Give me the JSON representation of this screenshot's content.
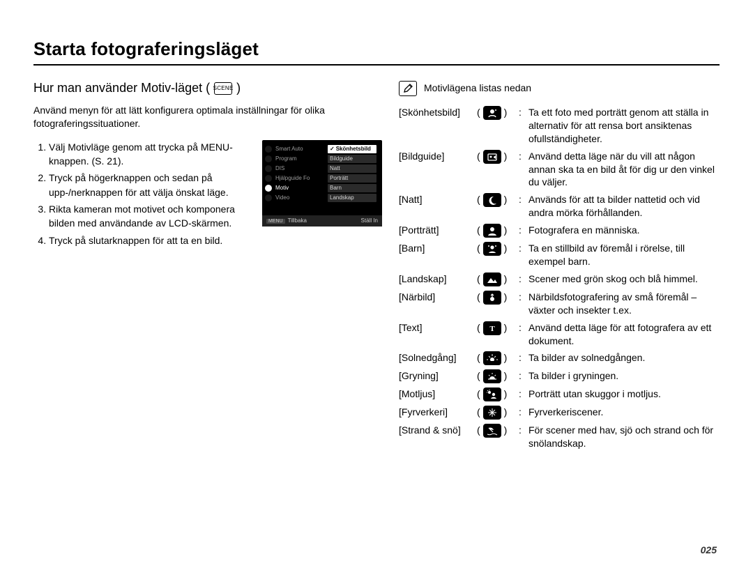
{
  "page_number": "025",
  "title": "Starta fotograferingsläget",
  "section_heading": "Hur man använder Motiv-läget (",
  "section_heading_close": ")",
  "section_icon_label": "SCENE",
  "intro": "Använd menyn för att lätt konfigurera optimala inställningar för olika fotograferingssituationer.",
  "steps": [
    "Välj Motivläge genom att trycka på MENU-knappen. (S. 21).",
    "Tryck på högerknappen och sedan på upp-/nerknappen för att välja önskat läge.",
    "Rikta kameran mot motivet och komponera bilden med användande av LCD-skärmen.",
    "Tryck på slutarknappen för att ta en bild."
  ],
  "lcd": {
    "left_items": [
      "Smart Auto",
      "Program",
      "DIS",
      "Hjälpguide Fo",
      "Motiv",
      "Video"
    ],
    "right_items": [
      "Skönhetsbild",
      "Bildguide",
      "Natt",
      "Porträtt",
      "Barn",
      "Landskap"
    ],
    "selected_index": 0,
    "footer_left_badge": "MENU",
    "footer_left": "Tillbaka",
    "footer_right": "Ställ In"
  },
  "note_heading": "Motivlägena listas nedan",
  "modes": [
    {
      "label": "[Skönhetsbild]",
      "icon": "beauty",
      "desc": "Ta ett foto med porträtt genom att ställa in alternativ för att rensa bort ansiktenas ofullständigheter."
    },
    {
      "label": "[Bildguide]",
      "icon": "guide",
      "desc": "Använd detta läge när du vill att någon annan ska ta en bild åt för dig ur den vinkel du väljer."
    },
    {
      "label": "[Natt]",
      "icon": "night",
      "desc": "Används för att ta bilder nattetid och vid andra mörka förhållanden."
    },
    {
      "label": "[Portträtt]",
      "icon": "portrait",
      "desc": "Fotografera en människa."
    },
    {
      "label": "[Barn]",
      "icon": "children",
      "desc": "Ta en stillbild av föremål i rörelse, till exempel barn."
    },
    {
      "label": "[Landskap]",
      "icon": "landscape",
      "desc": "Scener med grön skog och blå himmel."
    },
    {
      "label": "[Närbild]",
      "icon": "closeup",
      "desc": "Närbildsfotografering av små föremål – växter och insekter t.ex."
    },
    {
      "label": "[Text]",
      "icon": "text",
      "desc": "Använd detta läge för att fotografera av ett dokument."
    },
    {
      "label": "[Solnedgång]",
      "icon": "sunset",
      "desc": "Ta bilder av solnedgången."
    },
    {
      "label": "[Gryning]",
      "icon": "dawn",
      "desc": "Ta bilder i gryningen."
    },
    {
      "label": "[Motljus]",
      "icon": "backlight",
      "desc": "Porträtt utan skuggor i motljus."
    },
    {
      "label": "[Fyrverkeri]",
      "icon": "firework",
      "desc": "Fyrverkeriscener."
    },
    {
      "label": "[Strand & snö]",
      "icon": "beach",
      "desc": "För scener med hav, sjö och strand och för snölandskap."
    }
  ],
  "colors": {
    "text": "#000000",
    "icon_bg": "#000000",
    "icon_fg": "#ffffff",
    "lcd_bg": "#000000",
    "lcd_panel": "#2b2b2b",
    "lcd_sel_bg": "#ffffff"
  },
  "typography": {
    "h1_pt": 20,
    "h2_pt": 14,
    "body_pt": 10.5
  }
}
